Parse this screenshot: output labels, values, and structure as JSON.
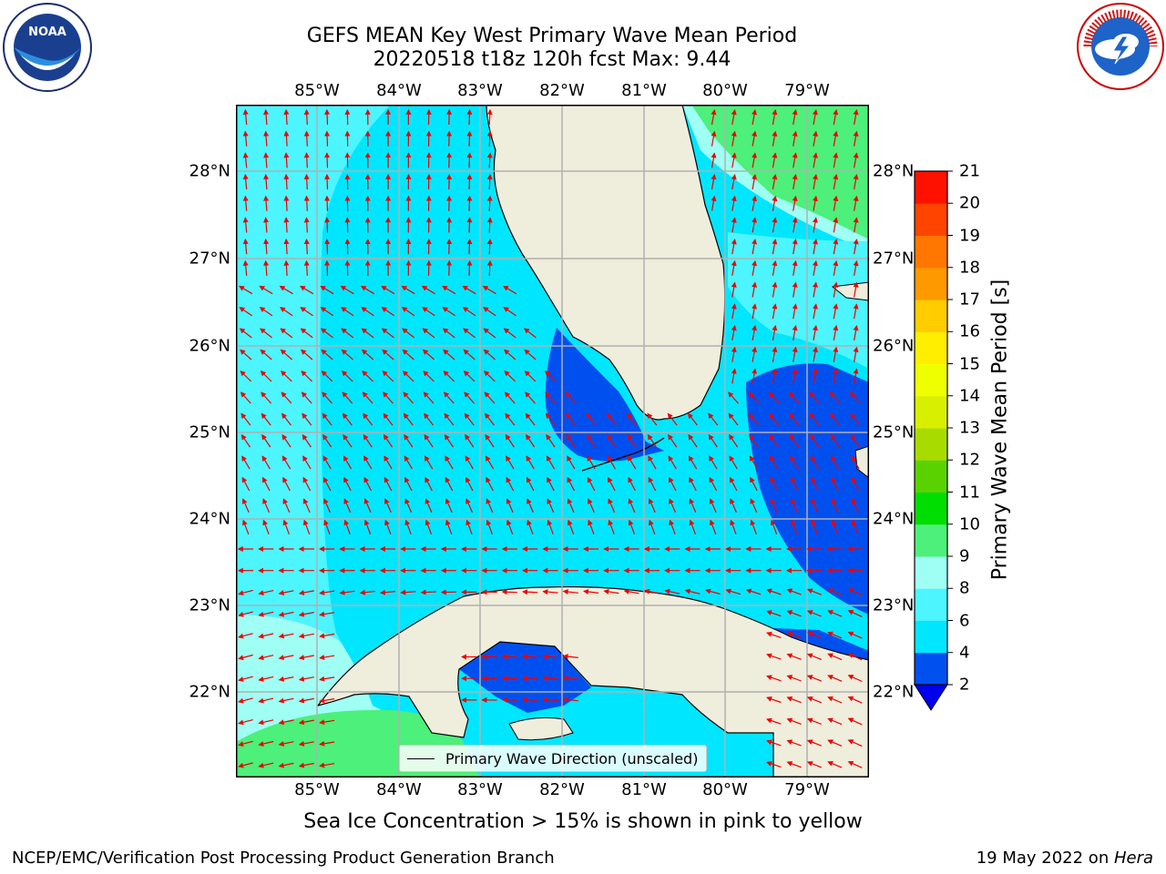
{
  "title": {
    "line1": "GEFS MEAN Key West Primary Wave Mean Period",
    "line2": "20220518 t18z 120h fcst   Max: 9.44"
  },
  "axes": {
    "lon_labels": [
      "85°W",
      "84°W",
      "83°W",
      "82°W",
      "81°W",
      "80°W",
      "79°W"
    ],
    "lat_labels": [
      "28°N",
      "27°N",
      "26°N",
      "25°N",
      "24°N",
      "23°N",
      "22°N"
    ]
  },
  "colorbar": {
    "label": "Primary Wave Mean Period [s]",
    "ticks": [
      "2",
      "4",
      "6",
      "8",
      "9",
      "10",
      "11",
      "12",
      "13",
      "14",
      "15",
      "16",
      "17",
      "18",
      "19",
      "20",
      "21"
    ],
    "colors": [
      "#0050f0",
      "#00e6ff",
      "#4cf5ff",
      "#a0fff4",
      "#4cf07a",
      "#00dd00",
      "#5ad200",
      "#a8dc00",
      "#d8f000",
      "#f0ff00",
      "#ffee00",
      "#ffcc00",
      "#ff9900",
      "#ff7700",
      "#ff4400",
      "#ff1100"
    ],
    "under_color": "#0000ee"
  },
  "legend": {
    "label": "Primary Wave Direction (unscaled)"
  },
  "note": "Sea Ice Concentration > 15% is shown in pink to yellow",
  "footer": {
    "left": "NCEP/EMC/Verification Post Processing Product Generation Branch",
    "right_prefix": "19 May 2022 on ",
    "right_host": "Hera"
  },
  "logos": {
    "noaa": {
      "text": "NOAA"
    },
    "nws": {
      "text": "NATIONAL WEATHER SERVICE"
    }
  },
  "colors": {
    "land": "#efeddc",
    "arrow": "#ee0000",
    "grid": "#b0b0b0",
    "coast": "#000000"
  }
}
